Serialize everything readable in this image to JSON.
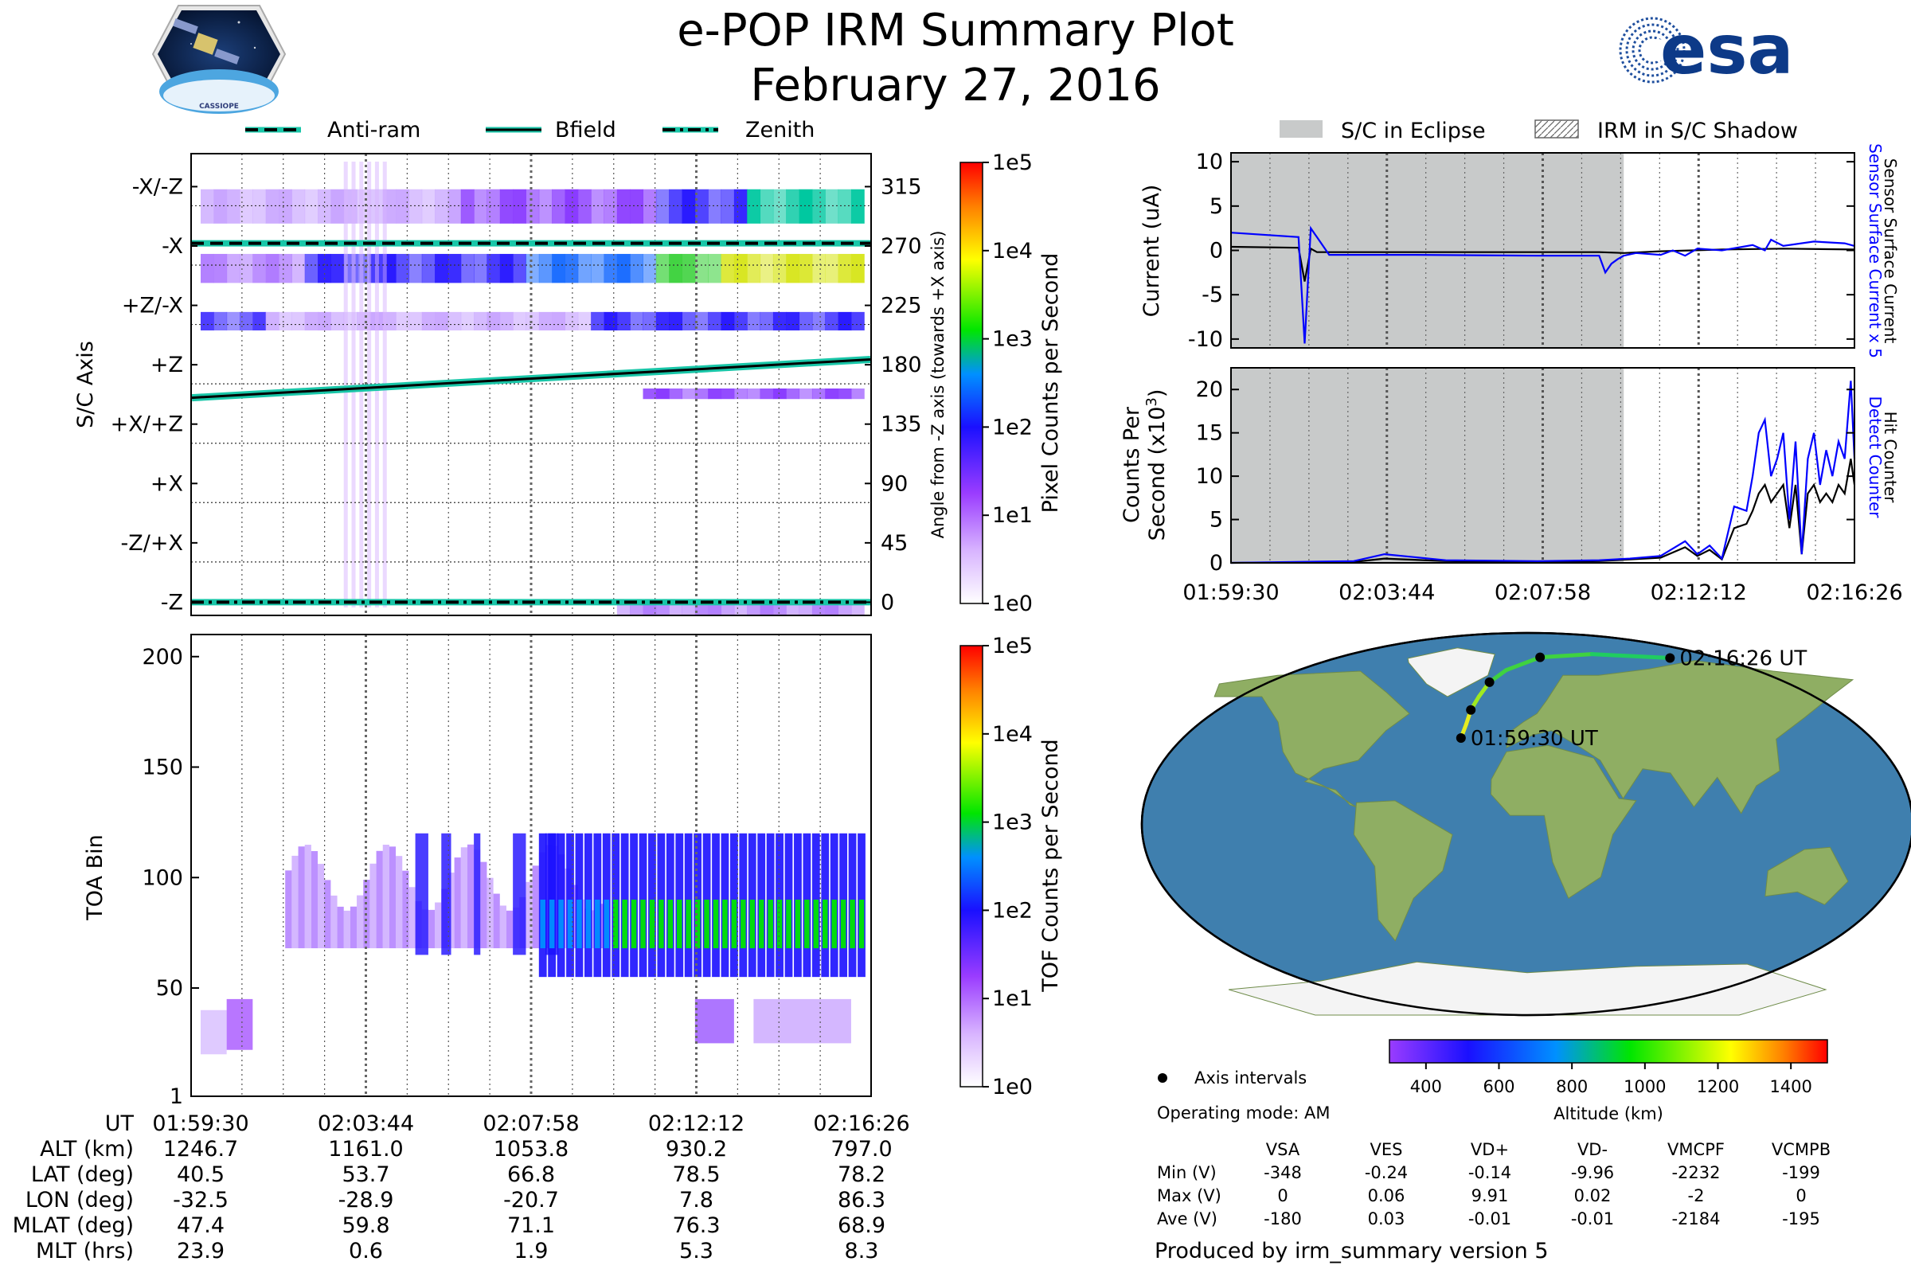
{
  "header": {
    "title": "e-POP IRM Summary Plot",
    "date": "February 27, 2016",
    "left_logo_text": "CASSIOPE",
    "right_logo_text": "esa"
  },
  "top_legend": {
    "anti_ram": "Anti-ram",
    "bfield": "Bfield",
    "zenith": "Zenith"
  },
  "right_legend": {
    "eclipse": "S/C in Eclipse",
    "shadow": "IRM in S/C Shadow"
  },
  "colors": {
    "current": "#0000ff",
    "black": "#000000",
    "eclipse": "#c8caca",
    "teal": "#19c6a8",
    "map_ocean": "#3f7fae",
    "map_land": "#8fae63"
  },
  "time_ticks": [
    "01:59:30",
    "02:03:44",
    "02:07:58",
    "02:12:12",
    "02:16:26"
  ],
  "info_table": {
    "rows": [
      {
        "label": "UT",
        "values": [
          "01:59:30",
          "02:03:44",
          "02:07:58",
          "02:12:12",
          "02:16:26"
        ]
      },
      {
        "label": "ALT (km)",
        "values": [
          "1246.7",
          "1161.0",
          "1053.8",
          "930.2",
          "797.0"
        ]
      },
      {
        "label": "LAT (deg)",
        "values": [
          "40.5",
          "53.7",
          "66.8",
          "78.5",
          "78.2"
        ]
      },
      {
        "label": "LON (deg)",
        "values": [
          "-32.5",
          "-28.9",
          "-20.7",
          "7.8",
          "86.3"
        ]
      },
      {
        "label": "MLAT (deg)",
        "values": [
          "47.4",
          "59.8",
          "71.1",
          "76.3",
          "68.9"
        ]
      },
      {
        "label": "MLT (hrs)",
        "values": [
          "23.9",
          "0.6",
          "1.9",
          "5.3",
          "8.3"
        ]
      }
    ]
  },
  "map": {
    "start_label": "01:59:30 UT",
    "end_label": "02:16:26 UT",
    "track_lonlat": [
      [
        -32.5,
        40.5
      ],
      [
        -30.5,
        47
      ],
      [
        -28.9,
        53.7
      ],
      [
        -25.5,
        60
      ],
      [
        -20.7,
        66.8
      ],
      [
        -12,
        72.5
      ],
      [
        7.8,
        78.5
      ],
      [
        40,
        80
      ],
      [
        86.3,
        78.2
      ]
    ],
    "track_alt": [
      1246.7,
      1200,
      1161.0,
      1110,
      1053.8,
      1000,
      930.2,
      870,
      797.0
    ],
    "points_lonlat": [
      [
        -32.5,
        40.5
      ],
      [
        -28.9,
        53.7
      ],
      [
        -20.7,
        66.8
      ],
      [
        7.8,
        78.5
      ],
      [
        86.3,
        78.2
      ]
    ]
  },
  "altitude_colorbar": {
    "ticks": [
      "400",
      "600",
      "800",
      "1000",
      "1200",
      "1400"
    ],
    "label": "Altitude (km)",
    "min": 300,
    "max": 1500
  },
  "notes": {
    "axis_intervals": "Axis intervals",
    "operating_mode": "Operating mode: AM",
    "produced_by": "Produced by irm_summary version 5"
  },
  "voltage_table": {
    "columns": [
      "VSA",
      "VES",
      "VD+",
      "VD-",
      "VMCPF",
      "VCMPB"
    ],
    "rows": [
      {
        "label": "Min (V)",
        "values": [
          "-348",
          "-0.24",
          "-0.14",
          "-9.96",
          "-2232",
          "-199"
        ]
      },
      {
        "label": "Max (V)",
        "values": [
          "0",
          "0.06",
          "9.91",
          "0.02",
          "-2",
          "0"
        ]
      },
      {
        "label": "Ave (V)",
        "values": [
          "-180",
          "0.03",
          "-0.01",
          "-0.01",
          "-2184",
          "-195"
        ]
      }
    ]
  },
  "chart_data": [
    {
      "id": "sc_axis",
      "type": "heatmap",
      "ylabel": "S/C Axis",
      "y2label": "Angle from -Z axis (towards +X axis)",
      "ytick_labels": [
        "-X/-Z",
        "-X",
        "+Z/-X",
        "+Z",
        "+X/+Z",
        "+X",
        "-Z/+X",
        "-Z"
      ],
      "y2ticks": [
        315,
        270,
        225,
        180,
        135,
        90,
        45,
        0
      ],
      "ylim": [
        -10,
        340
      ],
      "bfield": {
        "x": [
          "01:59:30",
          "02:16:26"
        ],
        "y": [
          155,
          184
        ]
      },
      "anti_ram": 272,
      "zenith": 0,
      "colorbar": {
        "label": "Pixel Counts per Second",
        "ticks": [
          "1e5",
          "1e4",
          "1e3",
          "1e2",
          "1e1",
          "1e0"
        ]
      }
    },
    {
      "id": "toa",
      "type": "heatmap",
      "ylabel": "TOA Bin",
      "yticks": [
        1,
        50,
        100,
        150,
        200
      ],
      "ylim": [
        1,
        210
      ],
      "colorbar": {
        "label": "TOF Counts per Second",
        "ticks": [
          "1e5",
          "1e4",
          "1e3",
          "1e2",
          "1e1",
          "1e0"
        ]
      }
    },
    {
      "id": "current",
      "type": "line",
      "ylabel": "Current (uA)",
      "right_label_1": "Sensor Surface Current x 5",
      "right_label_2": "Sensor Surface Current",
      "yticks": [
        10,
        5,
        0,
        -5,
        -10
      ],
      "ylim": [
        -11,
        11
      ],
      "xlim_sec": [
        0,
        1016
      ],
      "eclipse_sec": [
        0,
        640
      ],
      "series": [
        {
          "name": "Sensor Surface Current x 5",
          "color": "#0000ff",
          "x": [
            0,
            110,
            120,
            130,
            140,
            160,
            180,
            200,
            300,
            500,
            600,
            610,
            620,
            630,
            640,
            660,
            700,
            720,
            740,
            760,
            800,
            850,
            870,
            880,
            900,
            950,
            1000,
            1016
          ],
          "y": [
            2,
            1.5,
            -10.5,
            2.5,
            1.5,
            -0.5,
            -0.5,
            -0.5,
            -0.5,
            -0.6,
            -0.6,
            -2.5,
            -1.5,
            -1.0,
            -0.6,
            -0.3,
            -0.5,
            0,
            -0.6,
            0.2,
            0,
            0.6,
            0,
            1.2,
            0.5,
            1.0,
            0.8,
            0.5
          ]
        },
        {
          "name": "Sensor Surface Current",
          "color": "#000000",
          "x": [
            0,
            110,
            120,
            130,
            140,
            200,
            400,
            600,
            640,
            700,
            800,
            900,
            1016
          ],
          "y": [
            0.4,
            0.3,
            -3.5,
            0.2,
            -0.2,
            -0.2,
            -0.2,
            -0.2,
            -0.3,
            -0.1,
            0.1,
            0.2,
            0.1
          ]
        }
      ]
    },
    {
      "id": "counts",
      "type": "line",
      "ylabel": "Counts Per",
      "ylabel_2": "Second (x10",
      "ylabel_sup": "3",
      "ylabel_close": ")",
      "right_label_1": "Detect Counter",
      "right_label_2": "Hit Counter",
      "yticks": [
        0,
        5,
        10,
        15,
        20
      ],
      "ylim": [
        0,
        22.5
      ],
      "xlim_sec": [
        0,
        1016
      ],
      "eclipse_sec": [
        0,
        640
      ],
      "series": [
        {
          "name": "Detect Counter",
          "color": "#0000ff",
          "x": [
            0,
            200,
            250,
            350,
            500,
            600,
            650,
            700,
            740,
            760,
            780,
            800,
            820,
            840,
            850,
            860,
            870,
            880,
            890,
            900,
            910,
            920,
            930,
            940,
            950,
            960,
            970,
            980,
            990,
            1000,
            1010,
            1016
          ],
          "y": [
            0,
            0.2,
            1.0,
            0.3,
            0.2,
            0.3,
            0.5,
            0.8,
            2.5,
            1.0,
            2.0,
            0.5,
            6.5,
            6.0,
            10,
            15,
            16.5,
            10,
            12,
            15,
            5,
            14,
            1,
            12,
            15,
            9,
            13,
            10,
            14,
            12,
            21,
            12
          ]
        },
        {
          "name": "Hit Counter",
          "color": "#000000",
          "x": [
            0,
            200,
            250,
            350,
            500,
            600,
            650,
            700,
            740,
            760,
            780,
            800,
            820,
            840,
            850,
            860,
            870,
            880,
            890,
            900,
            910,
            920,
            930,
            940,
            950,
            960,
            970,
            980,
            990,
            1000,
            1010,
            1016
          ],
          "y": [
            0,
            0.1,
            0.5,
            0.2,
            0.1,
            0.2,
            0.4,
            0.6,
            1.8,
            0.8,
            1.5,
            0.4,
            4,
            4.5,
            6,
            8,
            9,
            7,
            8,
            9,
            4,
            9,
            1,
            8,
            9,
            7,
            8,
            7,
            9,
            8,
            12,
            9
          ]
        }
      ]
    }
  ]
}
